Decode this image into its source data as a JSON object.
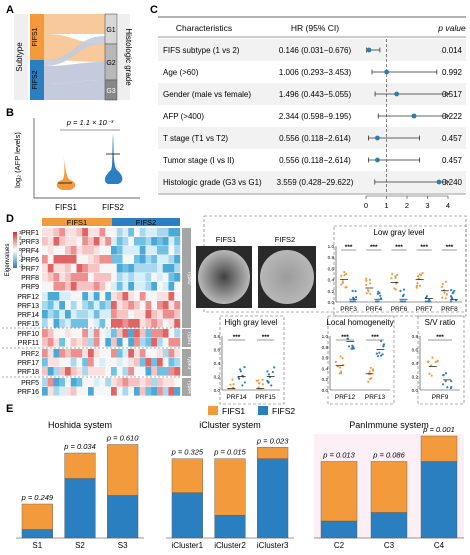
{
  "panels": {
    "A": {
      "letter": "A",
      "subtype_label": "Subtype",
      "grade_label": "Histologic grade",
      "subtypes": [
        "FIFS1",
        "FIFS2"
      ],
      "grades": [
        "G1",
        "G2",
        "G3"
      ],
      "colors": {
        "fifs1": "#f39a3c",
        "fifs2": "#2a7fc0",
        "fifs1_flow": "#f8c99a",
        "fifs2_flow": "#c3cbdc"
      }
    },
    "B": {
      "letter": "B",
      "ylabel": "log₂ (AFP levels)",
      "pvalue": "p = 1.1 × 10⁻³",
      "groups": [
        "FIFS1",
        "FIFS2"
      ]
    },
    "C": {
      "letter": "C",
      "headers": {
        "characteristics": "Characteristics",
        "hr": "HR (95% CI)",
        "p": "p value"
      },
      "rows": [
        {
          "label": "FIFS subtype (1 vs 2)",
          "hr": "0.146 (0.031−0.676)",
          "p": "0.014"
        },
        {
          "label": "Age (>60)",
          "hr": "1.006 (0.293−3.453)",
          "p": "0.992"
        },
        {
          "label": "Gender (male vs female)",
          "hr": "1.496 (0.443−5.055)",
          "p": "0.517"
        },
        {
          "label": "AFP (>400)",
          "hr": "2.344 (0.598−9.195)",
          "p": "0.222"
        },
        {
          "label": "T stage (T1 vs T2)",
          "hr": "0.556 (0.118−2.614)",
          "p": "0.457"
        },
        {
          "label": "Tumor stage (I vs II)",
          "hr": "0.556 (0.118−2.614)",
          "p": "0.457"
        },
        {
          "label": "Histologic grade (G3 vs G1)",
          "hr": "3.559 (0.428−29.622)",
          "p": "0.240"
        }
      ],
      "axis_ticks": [
        "0",
        "1",
        "2",
        "3",
        "4"
      ]
    },
    "D": {
      "letter": "D",
      "heatmap_groups": [
        "FIFS1",
        "FIFS2"
      ],
      "eigenvalue_label": "Eigenvalues",
      "colorbar_ticks": [
        "3",
        "2",
        "1",
        "0",
        "-1",
        "-2",
        "-3"
      ],
      "row_labels": [
        "PRF1",
        "PRF3",
        "PRF4",
        "PRF6",
        "PRF7",
        "PRF8",
        "PRF9",
        "PRF12",
        "PRF13",
        "PRF14",
        "PRF15",
        "PRF10",
        "PRF11",
        "PRF2",
        "PRF17",
        "PRF18",
        "PRF5",
        "PRF16"
      ],
      "type_labels": [
        "Type2",
        "Type1",
        "Type3",
        "Type4"
      ],
      "image_labels": [
        "FIFS1",
        "FIFS2"
      ],
      "sig": "***"
    },
    "E": {
      "letter": "E",
      "legend": [
        "FIFS1",
        "FIFS2"
      ]
    }
  },
  "chart_data": [
    {
      "type": "scatter",
      "title": "",
      "description_label": "Forest plot (hazard ratios)",
      "x": [
        0.146,
        1.006,
        1.496,
        2.344,
        0.556,
        0.556,
        3.559
      ],
      "ci_low": [
        0.031,
        0.293,
        0.443,
        0.598,
        0.118,
        0.118,
        0.428
      ],
      "ci_high": [
        0.676,
        3.453,
        5.055,
        9.195,
        2.614,
        2.614,
        29.622
      ],
      "xlim": [
        0,
        4
      ]
    },
    {
      "type": "scatter",
      "title": "Low gray level",
      "categories": [
        "PRF3",
        "PRF4",
        "PRF6",
        "PRF7",
        "PRF8"
      ],
      "series": [
        {
          "name": "FIFS1",
          "values": [
            0.4,
            0.25,
            0.35,
            0.4,
            0.2
          ]
        },
        {
          "name": "FIFS2",
          "values": [
            0.05,
            0.05,
            0.05,
            0.06,
            0.04
          ]
        }
      ],
      "ylim": [
        0,
        1.0
      ],
      "yticks": [
        "0.0",
        "0.2",
        "0.4",
        "0.6",
        "0.8",
        "1.0"
      ]
    },
    {
      "type": "scatter",
      "title": "High gray level",
      "categories": [
        "PRF14",
        "PRF15"
      ],
      "series": [
        {
          "name": "FIFS1",
          "values": [
            0.02,
            0.02
          ]
        },
        {
          "name": "FIFS2",
          "values": [
            0.2,
            0.2
          ]
        }
      ],
      "ylim": [
        0,
        0.8
      ],
      "yticks": [
        "0.0",
        "0.2",
        "0.4",
        "0.6",
        "0.8"
      ]
    },
    {
      "type": "scatter",
      "title": "Local homogeneity",
      "categories": [
        "PRF12",
        "PRF13"
      ],
      "series": [
        {
          "name": "FIFS1",
          "values": [
            0.45,
            0.3
          ]
        },
        {
          "name": "FIFS2",
          "values": [
            0.9,
            0.75
          ]
        }
      ],
      "ylim": [
        0,
        1.0
      ],
      "yticks": [
        "0.0",
        "0.2",
        "0.4",
        "0.6",
        "0.8",
        "1.0"
      ]
    },
    {
      "type": "scatter",
      "title": "S/V ratio",
      "categories": [
        "PRF9"
      ],
      "series": [
        {
          "name": "FIFS1",
          "values": [
            0.35
          ]
        },
        {
          "name": "FIFS2",
          "values": [
            0.15
          ]
        }
      ],
      "ylim": [
        0,
        0.8
      ],
      "yticks": [
        "0.0",
        "0.2",
        "0.4",
        "0.6",
        "0.8"
      ]
    },
    {
      "type": "bar",
      "title": "Hoshida system",
      "categories": [
        "S1",
        "S2",
        "S3"
      ],
      "series": [
        {
          "name": "FIFS1",
          "values": [
            3,
            3,
            6
          ]
        },
        {
          "name": "FIFS2",
          "values": [
            1,
            7,
            5
          ]
        }
      ],
      "pvalues": [
        "p = 0.249",
        "p = 0.034",
        "p = 0.610"
      ],
      "ylim": [
        0,
        12
      ]
    },
    {
      "type": "bar",
      "title": "iCluster system",
      "categories": [
        "iCluster1",
        "iCluster2",
        "iCluster3"
      ],
      "series": [
        {
          "name": "FIFS1",
          "values": [
            3,
            5,
            1
          ]
        },
        {
          "name": "FIFS2",
          "values": [
            4,
            2,
            7
          ]
        }
      ],
      "pvalues": [
        "p = 0.325",
        "p = 0.015",
        "p = 0.023"
      ],
      "ylim": [
        0,
        9
      ]
    },
    {
      "type": "bar",
      "title": "PanImmune system",
      "categories": [
        "C2",
        "C3",
        "C4"
      ],
      "series": [
        {
          "name": "FIFS1",
          "values": [
            7,
            6,
            3
          ]
        },
        {
          "name": "FIFS2",
          "values": [
            2,
            3,
            9
          ]
        }
      ],
      "pvalues": [
        "p = 0.013",
        "p = 0.086",
        "p = 0.001"
      ],
      "ylim": [
        0,
        12
      ]
    }
  ]
}
